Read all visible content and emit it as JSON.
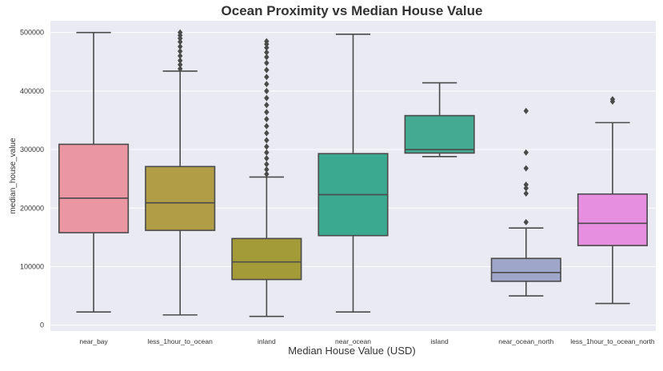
{
  "chart_data": {
    "type": "box",
    "title": "Ocean Proximity vs Median House Value",
    "xlabel": "Median House Value (USD)",
    "ylabel": "median_house_value",
    "ylim": [
      -10000,
      520000
    ],
    "yticks": [
      0,
      100000,
      200000,
      300000,
      400000,
      500000
    ],
    "grid": true,
    "categories": [
      "near_bay",
      "less_1hour_to_ocean",
      "inland",
      "near_ocean",
      "island",
      "near_ocean_north",
      "less_1hour_to_ocean_north"
    ],
    "boxes": [
      {
        "category": "near_bay",
        "color": "#ea96a3",
        "whisker_low": 22500,
        "q1": 158000,
        "median": 217000,
        "q3": 309000,
        "whisker_high": 500000,
        "outliers": []
      },
      {
        "category": "less_1hour_to_ocean",
        "color": "#b19d45",
        "whisker_low": 17500,
        "q1": 162000,
        "median": 209000,
        "q3": 271000,
        "whisker_high": 434000,
        "outliers": [
          438000,
          445000,
          452000,
          460000,
          468000,
          476000,
          484000,
          490000,
          495000,
          500000
        ]
      },
      {
        "category": "inland",
        "color": "#a39a38",
        "whisker_low": 15000,
        "q1": 78000,
        "median": 108000,
        "q3": 148000,
        "whisker_high": 253000,
        "outliers": [
          258000,
          266000,
          275000,
          285000,
          295000,
          305000,
          316000,
          328000,
          340000,
          352000,
          364000,
          376000,
          388000,
          400000,
          412000,
          424000,
          436000,
          448000,
          458000,
          466000,
          474000,
          480000,
          485000
        ]
      },
      {
        "category": "near_ocean",
        "color": "#3ba98f",
        "whisker_low": 22500,
        "q1": 153000,
        "median": 223000,
        "q3": 293000,
        "whisker_high": 497000,
        "outliers": []
      },
      {
        "category": "island",
        "color": "#45aa92",
        "whisker_low": 288000,
        "q1": 294000,
        "median": 300000,
        "q3": 358000,
        "whisker_high": 414000,
        "outliers": []
      },
      {
        "category": "near_ocean_north",
        "color": "#9ea6c9",
        "whisker_low": 50000,
        "q1": 75000,
        "median": 90000,
        "q3": 114000,
        "whisker_high": 166000,
        "outliers": [
          176000,
          225000,
          234000,
          240000,
          268000,
          295000,
          366000
        ]
      },
      {
        "category": "less_1hour_to_ocean_north",
        "color": "#e68fe0",
        "whisker_low": 37000,
        "q1": 136000,
        "median": 174000,
        "q3": 224000,
        "whisker_high": 346000,
        "outliers": [
          382000,
          386000
        ]
      }
    ]
  }
}
